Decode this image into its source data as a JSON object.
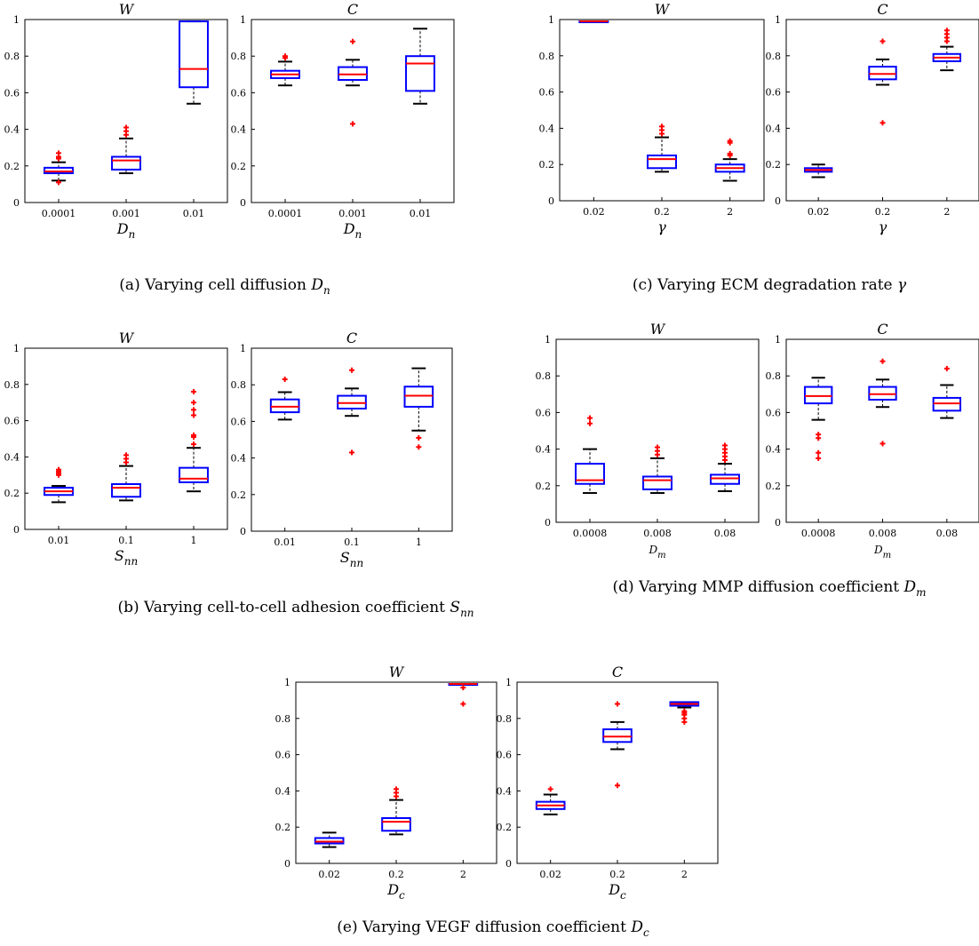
{
  "chart_data": [
    {
      "type": "box",
      "panel": "a-W",
      "title": "W",
      "xlabel": "D_n",
      "categories": [
        "0.0001",
        "0.001",
        "0.01"
      ],
      "ylim": [
        0,
        1
      ],
      "yticks": [
        "0",
        "0.2",
        "0.4",
        "0.6",
        "0.8",
        "1"
      ],
      "boxes": [
        {
          "lw": 0.12,
          "q1": 0.16,
          "median": 0.17,
          "q3": 0.19,
          "uw": 0.22,
          "outliers": [
            0.11,
            0.24,
            0.25,
            0.27
          ]
        },
        {
          "lw": 0.16,
          "q1": 0.18,
          "median": 0.23,
          "q3": 0.25,
          "uw": 0.35,
          "outliers": [
            0.37,
            0.39,
            0.41
          ]
        },
        {
          "lw": 0.54,
          "q1": 0.63,
          "median": 0.73,
          "q3": 0.99,
          "uw": 0.99,
          "outliers": []
        }
      ]
    },
    {
      "type": "box",
      "panel": "a-C",
      "title": "C",
      "xlabel": "D_n",
      "categories": [
        "0.0001",
        "0.001",
        "0.01"
      ],
      "ylim": [
        0,
        1
      ],
      "yticks": [
        "0",
        "0.2",
        "0.4",
        "0.6",
        "0.8",
        "1"
      ],
      "boxes": [
        {
          "lw": 0.64,
          "q1": 0.68,
          "median": 0.7,
          "q3": 0.72,
          "uw": 0.77,
          "outliers": [
            0.79,
            0.8
          ]
        },
        {
          "lw": 0.64,
          "q1": 0.67,
          "median": 0.7,
          "q3": 0.74,
          "uw": 0.78,
          "outliers": [
            0.43,
            0.88
          ]
        },
        {
          "lw": 0.54,
          "q1": 0.61,
          "median": 0.76,
          "q3": 0.8,
          "uw": 0.95,
          "outliers": []
        }
      ]
    },
    {
      "type": "box",
      "panel": "c-W",
      "title": "W",
      "xlabel": "γ",
      "categories": [
        "0.02",
        "0.2",
        "2"
      ],
      "ylim": [
        0,
        1
      ],
      "yticks": [
        "0",
        "0.2",
        "0.4",
        "0.6",
        "0.8",
        "1"
      ],
      "boxes": [
        {
          "lw": 0.99,
          "q1": 0.99,
          "median": 0.99,
          "q3": 0.99,
          "uw": 0.99,
          "outliers": []
        },
        {
          "lw": 0.16,
          "q1": 0.18,
          "median": 0.23,
          "q3": 0.25,
          "uw": 0.35,
          "outliers": [
            0.37,
            0.39,
            0.41
          ]
        },
        {
          "lw": 0.11,
          "q1": 0.16,
          "median": 0.18,
          "q3": 0.2,
          "uw": 0.23,
          "outliers": [
            0.25,
            0.26,
            0.32,
            0.33
          ]
        }
      ]
    },
    {
      "type": "box",
      "panel": "c-C",
      "title": "C",
      "xlabel": "γ",
      "categories": [
        "0.02",
        "0.2",
        "2"
      ],
      "ylim": [
        0,
        1
      ],
      "yticks": [
        "0",
        "0.2",
        "0.4",
        "0.6",
        "0.8",
        "1"
      ],
      "boxes": [
        {
          "lw": 0.13,
          "q1": 0.16,
          "median": 0.17,
          "q3": 0.18,
          "uw": 0.2,
          "outliers": []
        },
        {
          "lw": 0.64,
          "q1": 0.67,
          "median": 0.7,
          "q3": 0.74,
          "uw": 0.78,
          "outliers": [
            0.43,
            0.88
          ]
        },
        {
          "lw": 0.72,
          "q1": 0.77,
          "median": 0.79,
          "q3": 0.81,
          "uw": 0.85,
          "outliers": [
            0.88,
            0.9,
            0.92,
            0.94
          ]
        }
      ]
    },
    {
      "type": "box",
      "panel": "b-W",
      "title": "W",
      "xlabel": "S_nn",
      "categories": [
        "0.01",
        "0.1",
        "1"
      ],
      "ylim": [
        0,
        1
      ],
      "yticks": [
        "0",
        "0.2",
        "0.4",
        "0.6",
        "0.8",
        "1"
      ],
      "boxes": [
        {
          "lw": 0.15,
          "q1": 0.19,
          "median": 0.21,
          "q3": 0.23,
          "uw": 0.24,
          "outliers": [
            0.3,
            0.31,
            0.32,
            0.33
          ]
        },
        {
          "lw": 0.16,
          "q1": 0.18,
          "median": 0.23,
          "q3": 0.25,
          "uw": 0.35,
          "outliers": [
            0.37,
            0.39,
            0.41
          ]
        },
        {
          "lw": 0.21,
          "q1": 0.26,
          "median": 0.28,
          "q3": 0.34,
          "uw": 0.45,
          "outliers": [
            0.47,
            0.51,
            0.52,
            0.63,
            0.66,
            0.7,
            0.76
          ]
        }
      ]
    },
    {
      "type": "box",
      "panel": "b-C",
      "title": "C",
      "xlabel": "S_nn",
      "categories": [
        "0.01",
        "0.1",
        "1"
      ],
      "ylim": [
        0,
        1
      ],
      "yticks": [
        "0",
        "0.2",
        "0.4",
        "0.6",
        "0.8",
        "1"
      ],
      "boxes": [
        {
          "lw": 0.61,
          "q1": 0.65,
          "median": 0.68,
          "q3": 0.72,
          "uw": 0.76,
          "outliers": [
            0.83
          ]
        },
        {
          "lw": 0.63,
          "q1": 0.67,
          "median": 0.7,
          "q3": 0.74,
          "uw": 0.78,
          "outliers": [
            0.43,
            0.88
          ]
        },
        {
          "lw": 0.55,
          "q1": 0.68,
          "median": 0.74,
          "q3": 0.79,
          "uw": 0.89,
          "outliers": [
            0.46,
            0.51
          ]
        }
      ]
    },
    {
      "type": "box",
      "panel": "d-W",
      "title": "W",
      "xlabel": "D_m",
      "categories": [
        "0.0008",
        "0.008",
        "0.08"
      ],
      "ylim": [
        0,
        1
      ],
      "yticks": [
        "0",
        "0.2",
        "0.4",
        "0.6",
        "0.8",
        "1"
      ],
      "boxes": [
        {
          "lw": 0.16,
          "q1": 0.21,
          "median": 0.23,
          "q3": 0.32,
          "uw": 0.4,
          "outliers": [
            0.54,
            0.57
          ]
        },
        {
          "lw": 0.16,
          "q1": 0.18,
          "median": 0.23,
          "q3": 0.25,
          "uw": 0.35,
          "outliers": [
            0.37,
            0.39,
            0.41
          ]
        },
        {
          "lw": 0.17,
          "q1": 0.21,
          "median": 0.24,
          "q3": 0.26,
          "uw": 0.32,
          "outliers": [
            0.34,
            0.36,
            0.38,
            0.4,
            0.42
          ]
        }
      ]
    },
    {
      "type": "box",
      "panel": "d-C",
      "title": "C",
      "xlabel": "D_m",
      "categories": [
        "0.0008",
        "0.008",
        "0.08"
      ],
      "ylim": [
        0,
        1
      ],
      "yticks": [
        "0",
        "0.2",
        "0.4",
        "0.6",
        "0.8",
        "1"
      ],
      "boxes": [
        {
          "lw": 0.56,
          "q1": 0.65,
          "median": 0.69,
          "q3": 0.74,
          "uw": 0.79,
          "outliers": [
            0.35,
            0.38,
            0.46,
            0.48
          ]
        },
        {
          "lw": 0.63,
          "q1": 0.67,
          "median": 0.7,
          "q3": 0.74,
          "uw": 0.78,
          "outliers": [
            0.43,
            0.88
          ]
        },
        {
          "lw": 0.57,
          "q1": 0.61,
          "median": 0.65,
          "q3": 0.68,
          "uw": 0.75,
          "outliers": [
            0.84
          ]
        }
      ]
    },
    {
      "type": "box",
      "panel": "e-W",
      "title": "W",
      "xlabel": "D_c",
      "categories": [
        "0.02",
        "0.2",
        "2"
      ],
      "ylim": [
        0,
        1
      ],
      "yticks": [
        "0",
        "0.2",
        "0.4",
        "0.6",
        "0.8",
        "1"
      ],
      "boxes": [
        {
          "lw": 0.09,
          "q1": 0.11,
          "median": 0.12,
          "q3": 0.14,
          "uw": 0.17,
          "outliers": []
        },
        {
          "lw": 0.16,
          "q1": 0.18,
          "median": 0.23,
          "q3": 0.25,
          "uw": 0.35,
          "outliers": [
            0.37,
            0.39,
            0.41
          ]
        },
        {
          "lw": 0.99,
          "q1": 0.99,
          "median": 0.99,
          "q3": 0.99,
          "uw": 0.99,
          "outliers": [
            0.88,
            0.97
          ]
        }
      ]
    },
    {
      "type": "box",
      "panel": "e-C",
      "title": "C",
      "xlabel": "D_c",
      "categories": [
        "0.02",
        "0.2",
        "2"
      ],
      "ylim": [
        0,
        1
      ],
      "yticks": [
        "0",
        "0.2",
        "0.4",
        "0.6",
        "0.8",
        "1"
      ],
      "boxes": [
        {
          "lw": 0.27,
          "q1": 0.3,
          "median": 0.32,
          "q3": 0.34,
          "uw": 0.38,
          "outliers": [
            0.41
          ]
        },
        {
          "lw": 0.63,
          "q1": 0.67,
          "median": 0.7,
          "q3": 0.74,
          "uw": 0.78,
          "outliers": [
            0.43,
            0.88
          ]
        },
        {
          "lw": 0.86,
          "q1": 0.87,
          "median": 0.88,
          "q3": 0.89,
          "uw": 0.89,
          "outliers": [
            0.78,
            0.8,
            0.82,
            0.83,
            0.84
          ]
        }
      ]
    }
  ],
  "captions": {
    "a": "(a) Varying cell diffusion D_n",
    "b": "(b) Varying cell-to-cell adhesion coefficient S_nn",
    "c": "(c) Varying ECM degradation rate γ",
    "d": "(d) Varying MMP diffusion coefficient D_m",
    "e": "(e) Varying VEGF diffusion coefficient D_c"
  },
  "colors": {
    "box": "#0000ff",
    "median": "#ff0000",
    "whisker": "#000000",
    "outlier": "#ff0000"
  }
}
